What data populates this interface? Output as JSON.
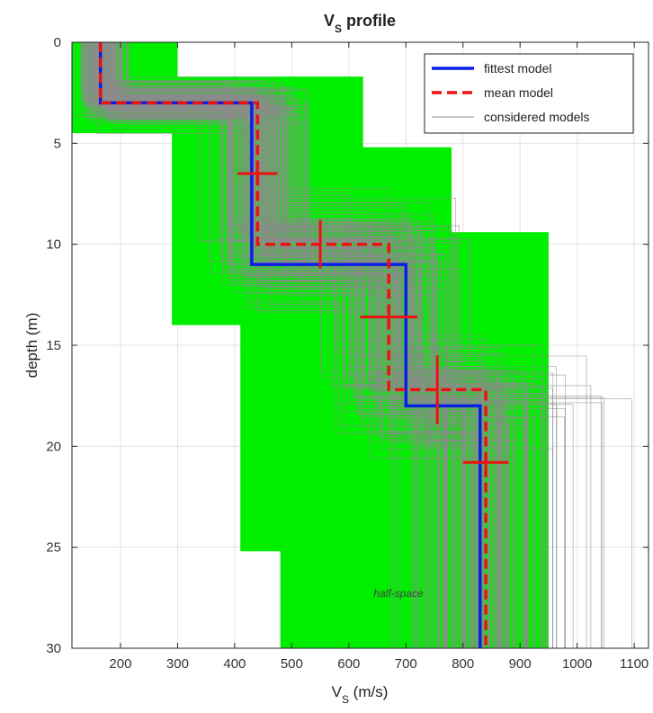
{
  "chart_data": {
    "type": "line",
    "title_main": "V",
    "title_sub": "S",
    "title_rest": " profile",
    "xlabel_main": "V",
    "xlabel_sub": "S",
    "xlabel_rest": " (m/s)",
    "ylabel": "depth (m)",
    "xlim": [
      115,
      1125
    ],
    "ylim": [
      0,
      30
    ],
    "y_reversed": true,
    "grid": true,
    "xticks": [
      200,
      300,
      400,
      500,
      600,
      700,
      800,
      900,
      1000,
      1100
    ],
    "yticks": [
      0,
      5,
      10,
      15,
      20,
      25,
      30
    ],
    "legend_placement": "top-right",
    "legend": [
      "fittest model",
      "mean model",
      "considered models"
    ],
    "annotation": "half-space",
    "colors": {
      "fittest": "#0a1fe6",
      "mean": "#ee1111",
      "considered": "#8c8c8c",
      "envelope": "#00ee00"
    },
    "fittest_model": [
      {
        "vs": 165,
        "top": 0,
        "bottom": 3
      },
      {
        "vs": 430,
        "top": 3,
        "bottom": 11
      },
      {
        "vs": 700,
        "top": 11,
        "bottom": 18
      },
      {
        "vs": 830,
        "top": 18,
        "bottom": 30
      }
    ],
    "mean_model": [
      {
        "vs": 165,
        "top": 0,
        "bottom": 3
      },
      {
        "vs": 440,
        "top": 3,
        "bottom": 10
      },
      {
        "vs": 670,
        "top": 10,
        "bottom": 17.2
      },
      {
        "vs": 840,
        "top": 17.2,
        "bottom": 30
      }
    ],
    "mean_error_bars": [
      {
        "vs": 440,
        "depth": 6.5,
        "vs_err": 35,
        "depth_err": 0
      },
      {
        "vs": 550,
        "depth": 10,
        "vs_err": 0,
        "depth_err": 1.2
      },
      {
        "vs": 670,
        "depth": 13.6,
        "vs_err": 50,
        "depth_err": 0
      },
      {
        "vs": 755,
        "depth": 17.2,
        "vs_err": 0,
        "depth_err": 1.7
      },
      {
        "vs": 840,
        "depth": 20.8,
        "vs_err": 40,
        "depth_err": 0
      }
    ],
    "search_envelope": [
      {
        "vs_min": 115,
        "vs_max": 300,
        "top": 0,
        "bottom": 4.5
      },
      {
        "vs_min": 290,
        "vs_max": 625,
        "top": 1.7,
        "bottom": 14
      },
      {
        "vs_min": 410,
        "vs_max": 780,
        "top": 5.2,
        "bottom": 25.2
      },
      {
        "vs_min": 480,
        "vs_max": 950,
        "top": 9.4,
        "bottom": 30
      }
    ]
  }
}
